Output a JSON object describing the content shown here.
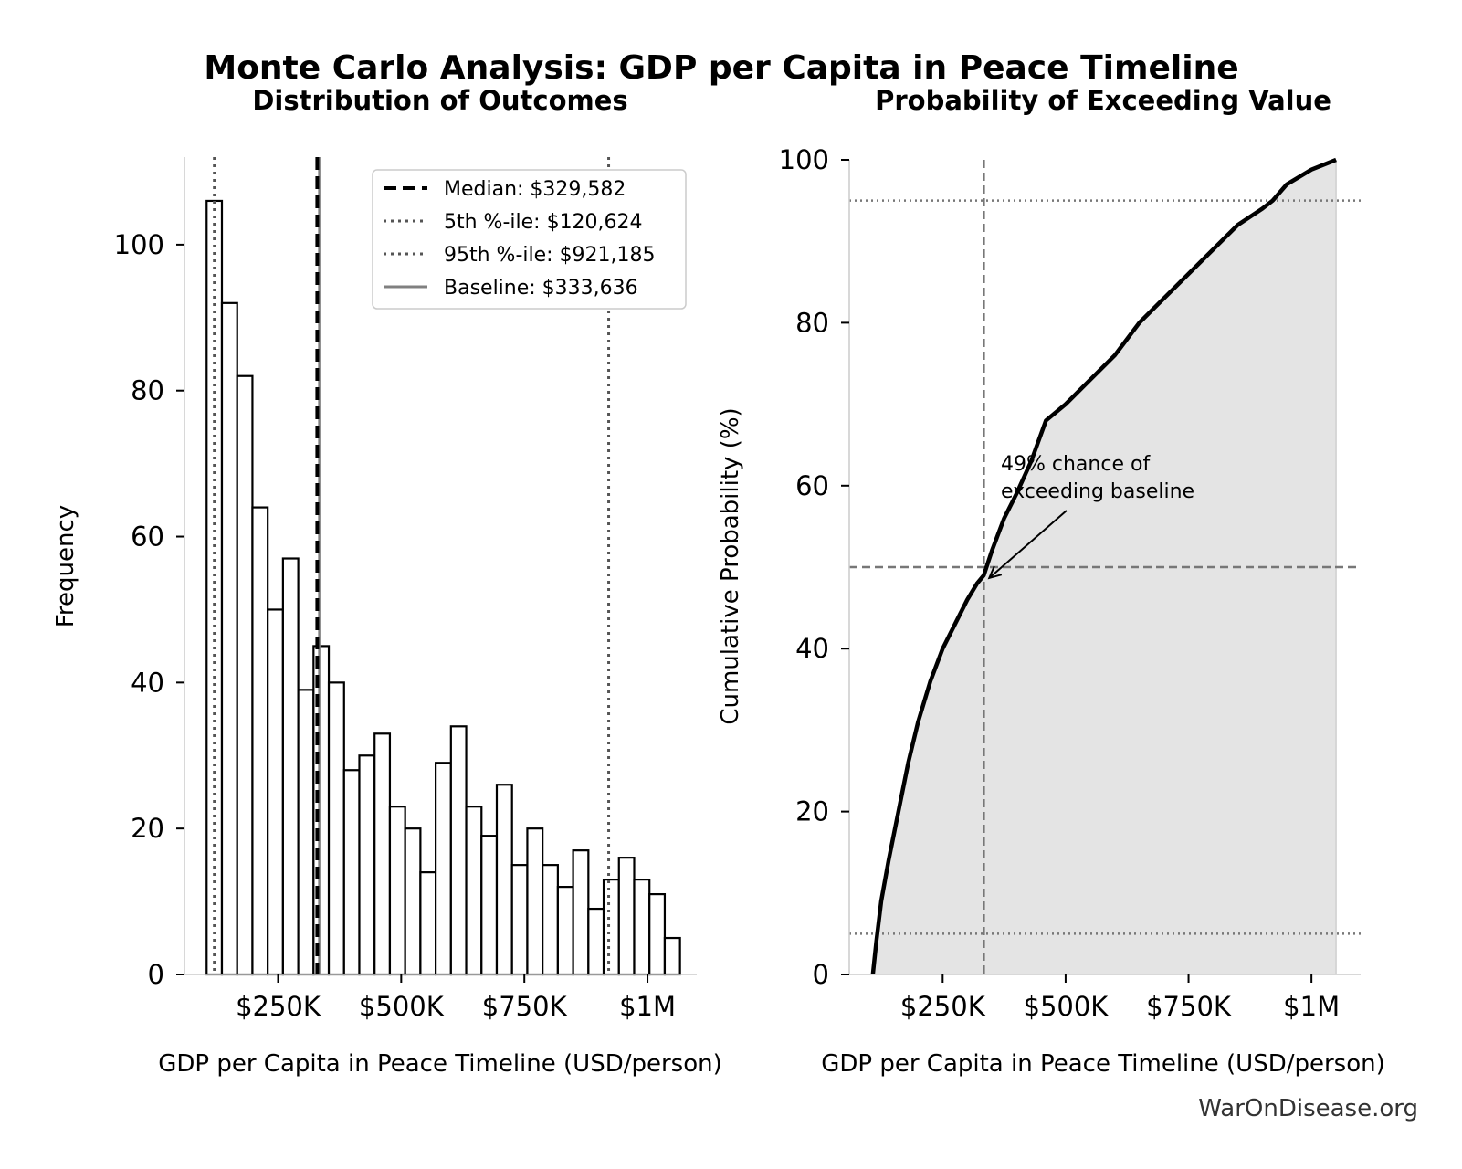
{
  "figure": {
    "title": "Monte Carlo Analysis: GDP per Capita in Peace Timeline",
    "credit": "WarOnDisease.org"
  },
  "chart_data": [
    {
      "type": "bar",
      "subtype": "histogram",
      "title": "Distribution of Outcomes",
      "xlabel": "GDP per Capita in Peace Timeline (USD/person)",
      "ylabel": "Frequency",
      "xlim": [
        60000,
        1100000
      ],
      "ylim": [
        0,
        112
      ],
      "xticks": [
        250000,
        500000,
        750000,
        1000000
      ],
      "xtick_labels": [
        "$250K",
        "$500K",
        "$750K",
        "$1M"
      ],
      "yticks": [
        0,
        20,
        40,
        60,
        80,
        100
      ],
      "ytick_labels": [
        "0",
        "20",
        "40",
        "60",
        "80",
        "100"
      ],
      "bin_start": 105000,
      "bin_width": 31000,
      "values": [
        106,
        92,
        82,
        64,
        50,
        57,
        39,
        45,
        40,
        28,
        30,
        33,
        23,
        20,
        14,
        29,
        34,
        23,
        19,
        26,
        15,
        20,
        15,
        12,
        17,
        9,
        13,
        16,
        13,
        11,
        5
      ],
      "bar_fill": "#ffffff",
      "bar_edge": "#000000",
      "grid": false,
      "legend_position": "upper right",
      "reference_lines": [
        {
          "label": "Median: $329,582",
          "value": 329582,
          "style": "dashed",
          "color": "#000000"
        },
        {
          "label": "5th %-ile: $120,624",
          "value": 120624,
          "style": "dotted",
          "color": "#555555"
        },
        {
          "label": "95th %-ile: $921,185",
          "value": 921185,
          "style": "dotted",
          "color": "#555555"
        },
        {
          "label": "Baseline: $333,636",
          "value": 333636,
          "style": "solid",
          "color": "#808080"
        }
      ]
    },
    {
      "type": "area",
      "title": "Probability of Exceeding Value",
      "xlabel": "GDP per Capita in Peace Timeline (USD/person)",
      "ylabel": "Cumulative Probability (%)",
      "xlim": [
        60000,
        1100000
      ],
      "ylim": [
        0,
        100
      ],
      "xticks": [
        250000,
        500000,
        750000,
        1000000
      ],
      "xtick_labels": [
        "$250K",
        "$500K",
        "$750K",
        "$1M"
      ],
      "yticks": [
        0,
        20,
        40,
        60,
        80,
        100
      ],
      "ytick_labels": [
        "0",
        "20",
        "40",
        "60",
        "80",
        "100"
      ],
      "fill_color": "#e4e4e4",
      "line_color": "#000000",
      "grid": false,
      "x": [
        108000,
        115000,
        125000,
        140000,
        160000,
        180000,
        200000,
        225000,
        250000,
        275000,
        300000,
        320000,
        333636,
        350000,
        375000,
        400000,
        430000,
        460000,
        500000,
        550000,
        600000,
        650000,
        700000,
        750000,
        800000,
        850000,
        900000,
        921185,
        950000,
        1000000,
        1050000
      ],
      "values": [
        0,
        4,
        9,
        14,
        20,
        26,
        31,
        36,
        40,
        43,
        46,
        48,
        49,
        52,
        56,
        59,
        63,
        68,
        70,
        73,
        76,
        80,
        83,
        86,
        89,
        92,
        94,
        95,
        97,
        98.8,
        100
      ],
      "reference_lines": [
        {
          "orientation": "vertical",
          "value": 333636,
          "style": "dashed",
          "color": "#777777"
        },
        {
          "orientation": "horizontal",
          "value": 50,
          "style": "dashed",
          "color": "#777777"
        },
        {
          "orientation": "horizontal",
          "value": 95,
          "style": "dotted",
          "color": "#777777"
        },
        {
          "orientation": "horizontal",
          "value": 5,
          "style": "dotted",
          "color": "#777777"
        }
      ],
      "annotation": {
        "text_lines": [
          "49% chance of",
          "exceeding baseline"
        ],
        "target_x": 333636,
        "target_y": 49
      }
    }
  ]
}
